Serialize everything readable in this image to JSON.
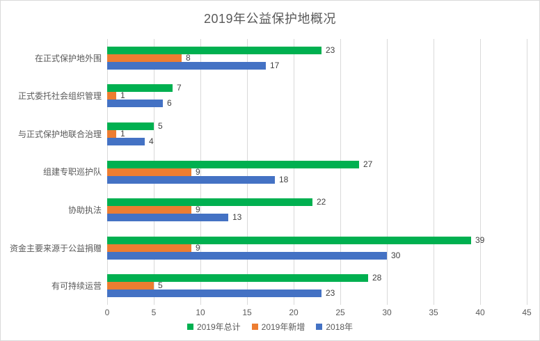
{
  "chart_data": {
    "type": "bar",
    "orientation": "horizontal",
    "title": "2019年公益保护地概况",
    "categories": [
      "在正式保护地外围",
      "正式委托社会组织管理",
      "与正式保护地联合治理",
      "组建专职巡护队",
      "协助执法",
      "资金主要来源于公益捐赠",
      "有可持续运营"
    ],
    "series": [
      {
        "name": "2019年总计",
        "color": "#00B050",
        "values": [
          23,
          7,
          5,
          27,
          22,
          39,
          28
        ]
      },
      {
        "name": "2019年新增",
        "color": "#ED7D31",
        "values": [
          8,
          1,
          1,
          9,
          9,
          9,
          5
        ]
      },
      {
        "name": "2018年",
        "color": "#4472C4",
        "values": [
          17,
          6,
          4,
          18,
          13,
          30,
          23
        ]
      }
    ],
    "xlim": [
      0,
      45
    ],
    "x_ticks": [
      0,
      5,
      10,
      15,
      20,
      25,
      30,
      35,
      40,
      45
    ],
    "grid": "vertical-gridlines",
    "legend_position": "bottom",
    "data_labels": true,
    "bar_order_in_group": "top-to-bottom follows series order"
  },
  "style": {
    "background": "#FFFFFF",
    "border_color": "#D9D9D9",
    "gridline_color": "#D9D9D9",
    "title_color": "#595959",
    "axis_text_color": "#595959",
    "category_text_color": "#595959",
    "data_label_color": "#404040",
    "legend_text_color": "#595959"
  }
}
